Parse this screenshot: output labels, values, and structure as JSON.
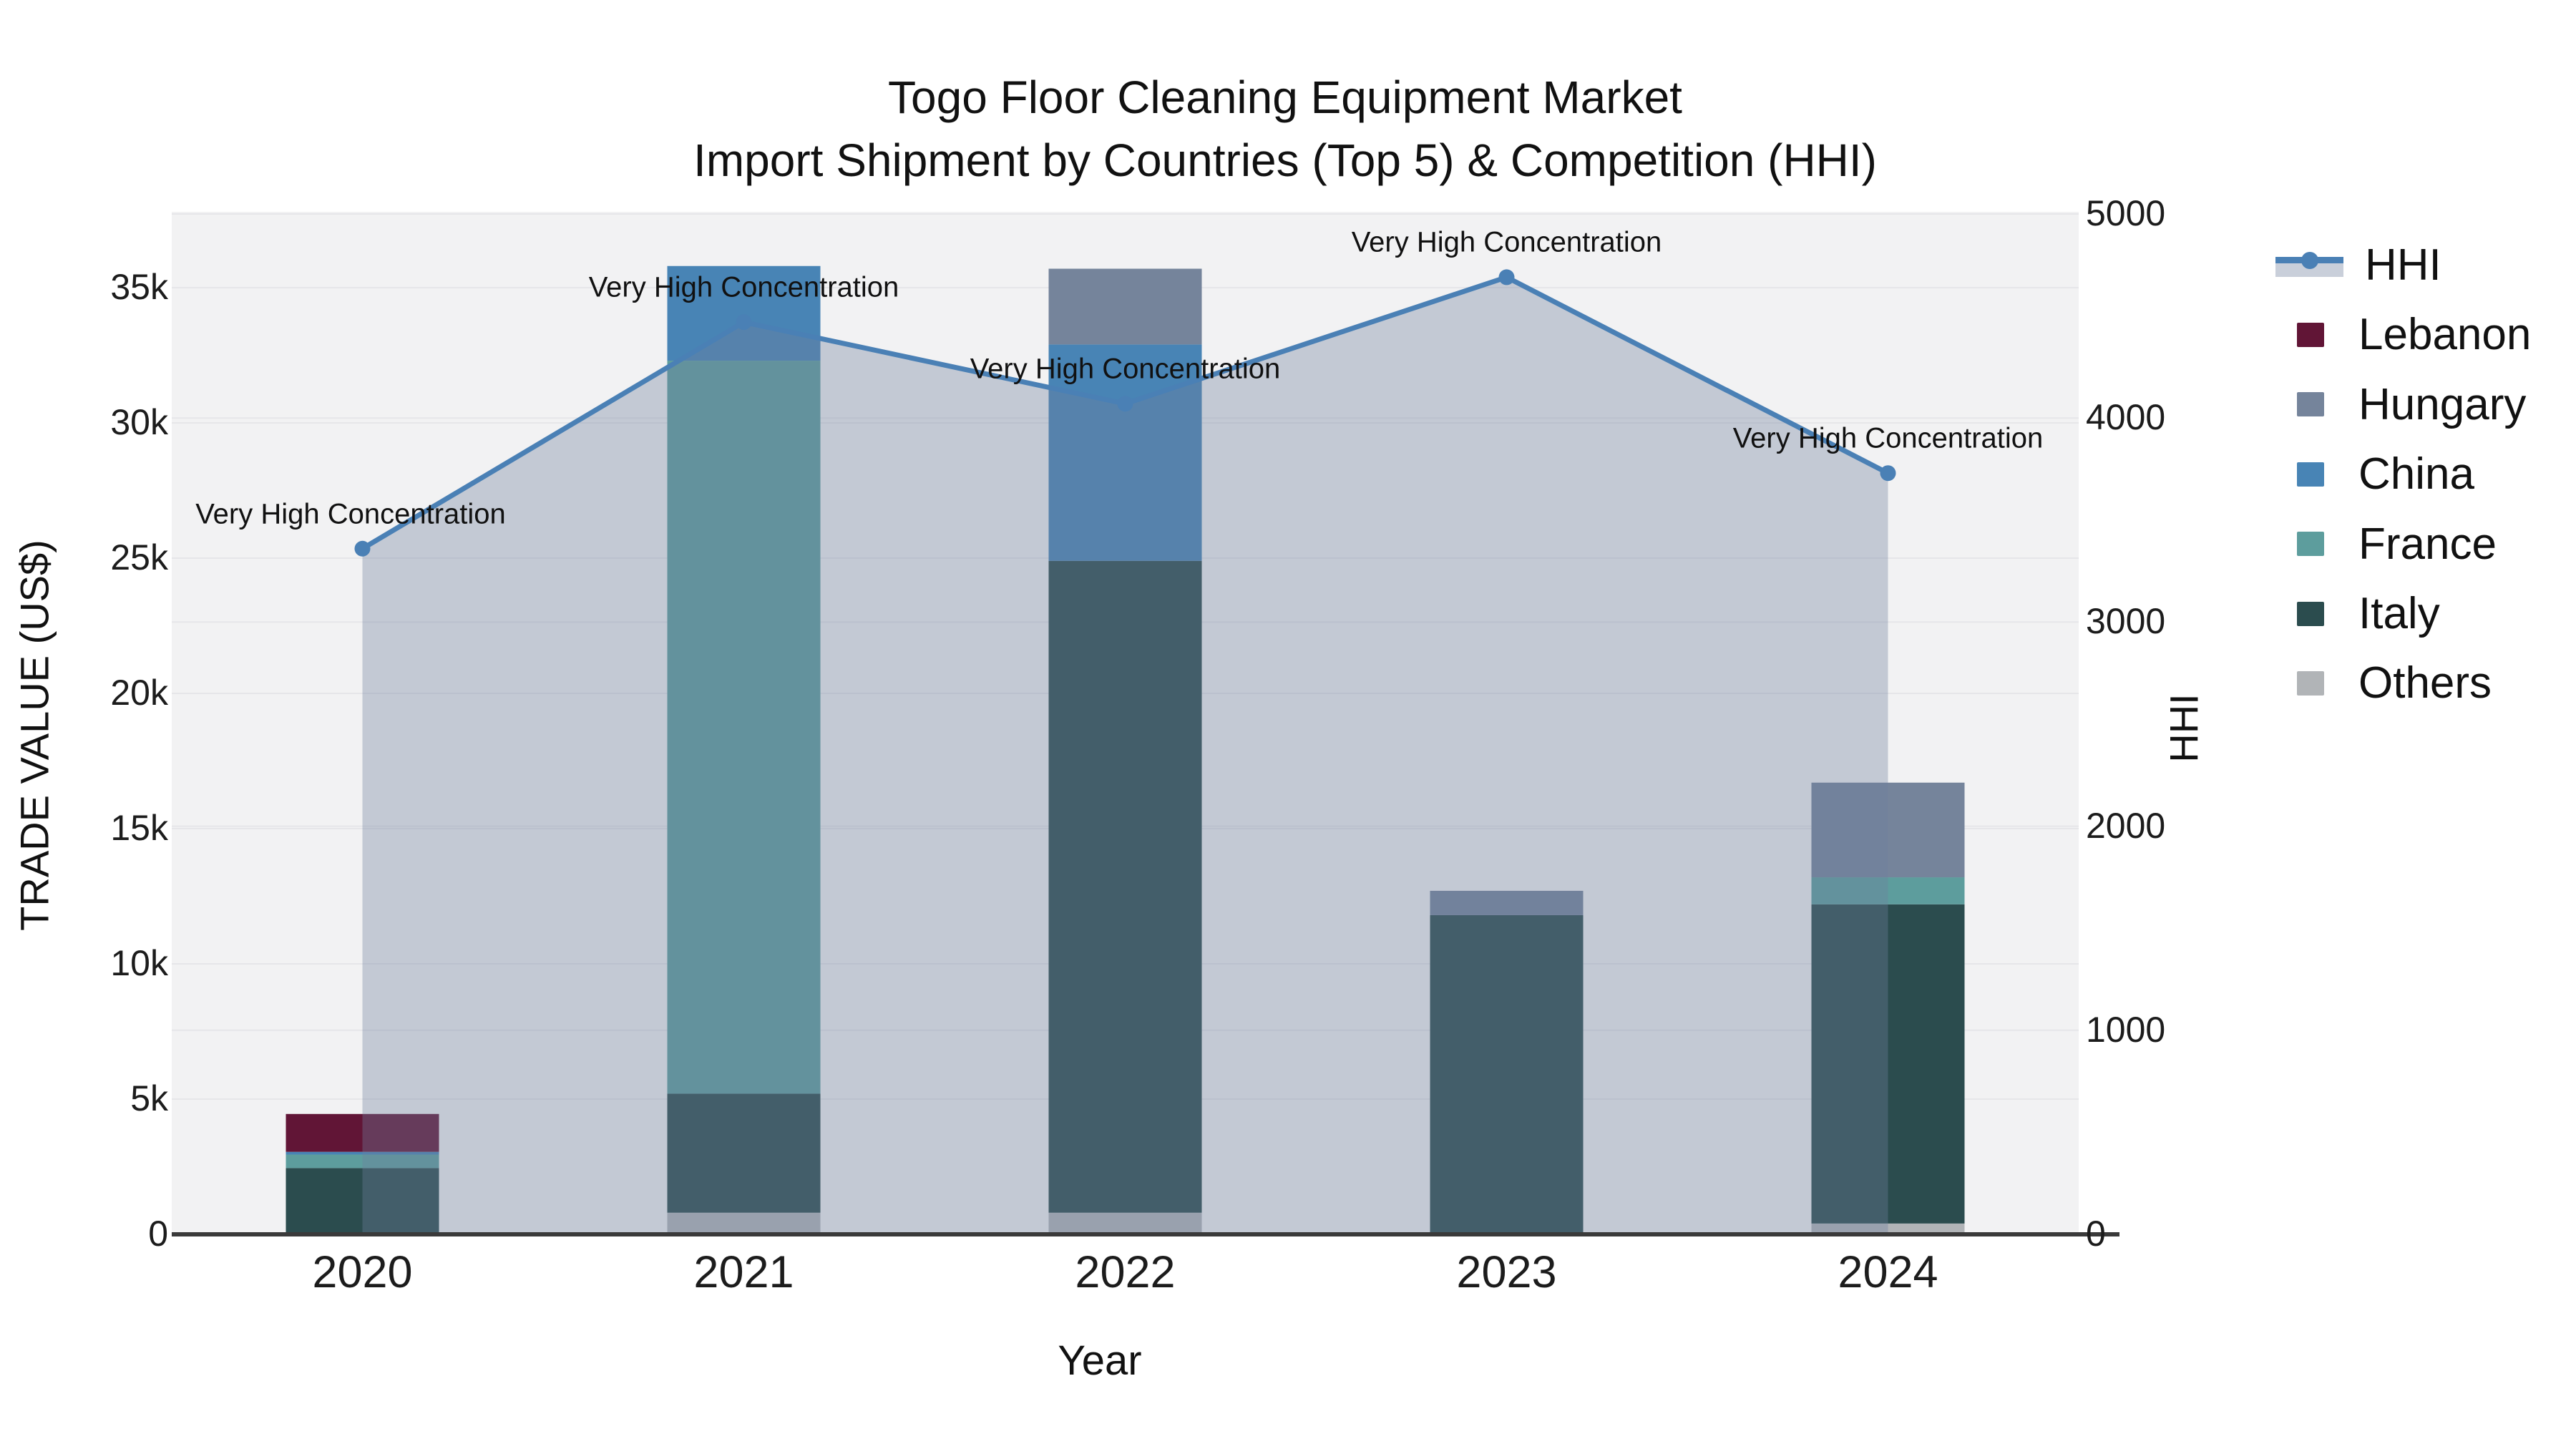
{
  "title": {
    "line1": "Togo Floor Cleaning Equipment Market",
    "line2": "Import Shipment by Countries (Top 5) & Competition (HHI)"
  },
  "chart_data": {
    "type": "combo: stacked-bar + line-area (secondary axis)",
    "categories": [
      "2020",
      "2021",
      "2022",
      "2023",
      "2024"
    ],
    "xlabel": "Year",
    "left_axis": {
      "title": "TRADE VALUE (US$)",
      "tick_labels": [
        "0",
        "5k",
        "10k",
        "15k",
        "20k",
        "25k",
        "30k",
        "35k"
      ],
      "tick_values": [
        0,
        5000,
        10000,
        15000,
        20000,
        25000,
        30000,
        35000
      ],
      "range": [
        0,
        37800
      ],
      "grid": true
    },
    "right_axis": {
      "title": "HHI",
      "tick_labels": [
        "0",
        "1000",
        "2000",
        "3000",
        "4000",
        "5000"
      ],
      "tick_values": [
        0,
        1000,
        2000,
        3000,
        4000,
        5000
      ],
      "range": [
        0,
        5000
      ],
      "grid": true
    },
    "bar_series": [
      {
        "name": "Others",
        "color": "#b1b4b7",
        "values": [
          0,
          800,
          800,
          0,
          400
        ]
      },
      {
        "name": "Italy",
        "color": "#2b4c4e",
        "values": [
          2450,
          4400,
          24100,
          11800,
          11800
        ]
      },
      {
        "name": "France",
        "color": "#5d9d9d",
        "values": [
          500,
          27100,
          0,
          0,
          1000
        ]
      },
      {
        "name": "China",
        "color": "#4884b5",
        "values": [
          100,
          3500,
          8000,
          0,
          0
        ]
      },
      {
        "name": "Hungary",
        "color": "#75849b",
        "values": [
          0,
          0,
          2800,
          900,
          3500
        ]
      },
      {
        "name": "Lebanon",
        "color": "#611536",
        "values": [
          1400,
          0,
          0,
          0,
          0
        ]
      }
    ],
    "bar_totals": [
      4450,
      35800,
      35700,
      12700,
      16700
    ],
    "line_series": {
      "name": "HHI",
      "color": "#4a80b5",
      "area_fill": "rgba(112,128,158,0.36)",
      "values": [
        3360,
        4470,
        4070,
        4690,
        3730
      ]
    },
    "annotations": [
      {
        "year": "2020",
        "text": "Very High Concentration"
      },
      {
        "year": "2021",
        "text": "Very High Concentration"
      },
      {
        "year": "2022",
        "text": "Very High Concentration"
      },
      {
        "year": "2023",
        "text": "Very High Concentration"
      },
      {
        "year": "2024",
        "text": "Very High Concentration"
      }
    ],
    "legend": [
      {
        "label": "HHI",
        "type": "line",
        "color": "#4a80b5"
      },
      {
        "label": "Lebanon",
        "type": "swatch",
        "color": "#611536"
      },
      {
        "label": "Hungary",
        "type": "swatch",
        "color": "#75849b"
      },
      {
        "label": "China",
        "type": "swatch",
        "color": "#4884b5"
      },
      {
        "label": "France",
        "type": "swatch",
        "color": "#5d9d9d"
      },
      {
        "label": "Italy",
        "type": "swatch",
        "color": "#2b4c4e"
      },
      {
        "label": "Others",
        "type": "swatch",
        "color": "#b1b4b7"
      }
    ],
    "legend_position": "right",
    "plot_bg": "#f2f2f3",
    "grid_color": "#e6e6e9",
    "axis_line_color": "#3a3a3a"
  }
}
